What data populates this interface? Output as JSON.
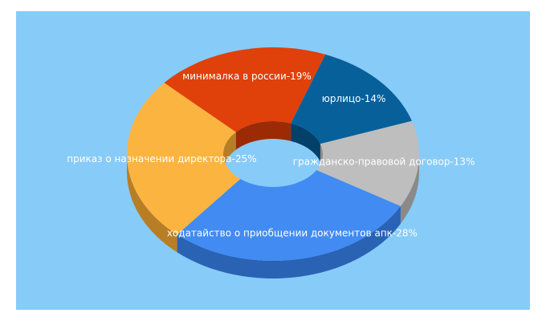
{
  "colors": {
    "background": "#87cbf9",
    "label": "#ffffff"
  },
  "chart_data": {
    "type": "pie",
    "title": "",
    "categories": [
      "юрлицо",
      "гражданско-правовой договор",
      "ходатайство о приобщении документов апк",
      "приказ о назначении директора",
      "минималка в россии"
    ],
    "values": [
      14,
      13,
      28,
      25,
      19
    ],
    "labels": [
      "юрлицо-14%",
      "гражданско-правовой договор-13%",
      "ходатайство о приобщении документов апк-28%",
      "приказ о назначении директора-25%",
      "минималка в россии-19%"
    ],
    "colors": [
      "#07609a",
      "#bebebe",
      "#418bf2",
      "#fcb441",
      "#e0400a"
    ],
    "shadow_colors": [
      "#03406a",
      "#8a8a8a",
      "#2a62b4",
      "#b87e25",
      "#9c2b05"
    ],
    "donut": true,
    "style_3d": true,
    "legend": "none"
  }
}
